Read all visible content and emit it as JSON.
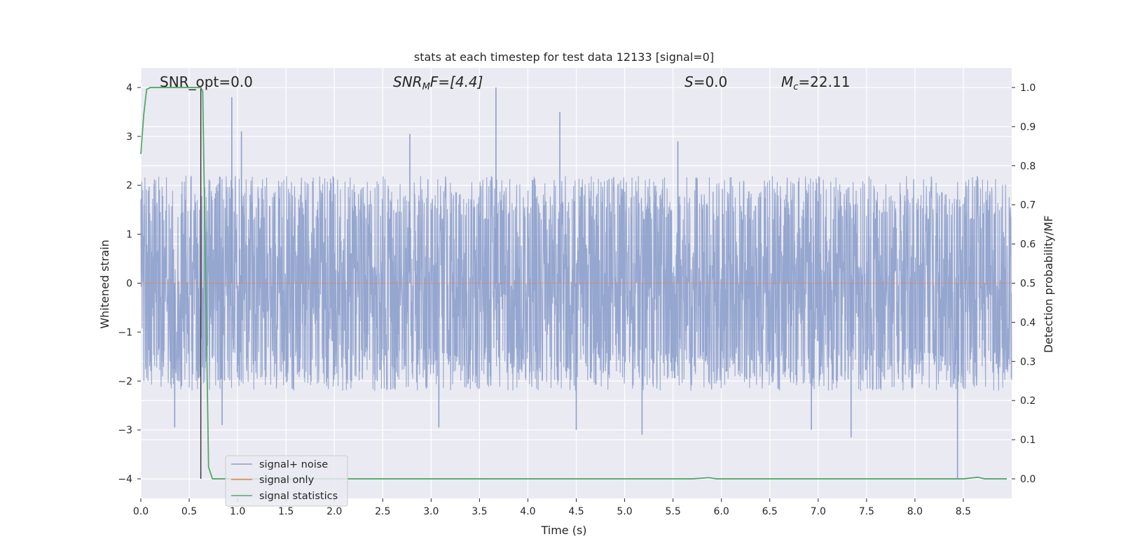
{
  "chart_data": {
    "type": "line",
    "title": "stats at each timestep for test data 12133 [signal=0]",
    "xlabel": "Time (s)",
    "ylabel_left": "Whitened strain",
    "ylabel_right": "Detection probability/MF",
    "xlim": [
      0,
      9.0
    ],
    "ylim_left": [
      -4.4,
      4.4
    ],
    "ylim_right": [
      -0.05,
      1.05
    ],
    "x_ticks": [
      0.0,
      0.5,
      1.0,
      1.5,
      2.0,
      2.5,
      3.0,
      3.5,
      4.0,
      4.5,
      5.0,
      5.5,
      6.0,
      6.5,
      7.0,
      7.5,
      8.0,
      8.5
    ],
    "x_tick_labels": [
      "0.0",
      "0.5",
      "1.0",
      "1.5",
      "2.0",
      "2.5",
      "3.0",
      "3.5",
      "4.0",
      "4.5",
      "5.0",
      "5.5",
      "6.0",
      "6.5",
      "7.0",
      "7.5",
      "8.0",
      "8.5"
    ],
    "y_left_ticks": [
      -4,
      -3,
      -2,
      -1,
      0,
      1,
      2,
      3,
      4
    ],
    "y_left_tick_labels": [
      "−4",
      "−3",
      "−2",
      "−1",
      "0",
      "1",
      "2",
      "3",
      "4"
    ],
    "y_right_ticks": [
      0.0,
      0.1,
      0.2,
      0.3,
      0.4,
      0.5,
      0.6,
      0.7,
      0.8,
      0.9,
      1.0
    ],
    "y_right_tick_labels": [
      "0.0",
      "0.1",
      "0.2",
      "0.3",
      "0.4",
      "0.5",
      "0.6",
      "0.7",
      "0.8",
      "0.9",
      "1.0"
    ],
    "grid": true,
    "background": "#eaeaf2",
    "annotations": {
      "snr_opt": "SNR_opt=0.0",
      "snr_mf_prefix": "SNR",
      "snr_mf_sub": "M",
      "snr_mf_suffix": "F=[4.4]",
      "s_prefix": "S",
      "s_suffix": "=0.0",
      "mc_prefix": "M",
      "mc_sub": "c",
      "mc_suffix": "=22.11"
    },
    "legend": {
      "placement": "lower-left",
      "entries": [
        {
          "label": "signal+ noise",
          "color": "#8c9fcb"
        },
        {
          "label": "signal only",
          "color": "#dd8452"
        },
        {
          "label": "signal statistics",
          "color": "#55a868"
        }
      ]
    },
    "series": [
      {
        "name": "signal+ noise",
        "axis": "left",
        "style": "dense noise band",
        "color": "#8c9fcb",
        "envelope_typical": [
          -1.8,
          2.0
        ],
        "spikes": [
          {
            "x": 0.94,
            "y": 3.8
          },
          {
            "x": 1.04,
            "y": 3.1
          },
          {
            "x": 2.78,
            "y": 3.05
          },
          {
            "x": 3.67,
            "y": 4.0
          },
          {
            "x": 4.33,
            "y": 3.5
          },
          {
            "x": 5.55,
            "y": 2.9
          },
          {
            "x": 0.35,
            "y": -2.95
          },
          {
            "x": 0.84,
            "y": -2.9
          },
          {
            "x": 3.08,
            "y": -2.95
          },
          {
            "x": 4.5,
            "y": -3.0
          },
          {
            "x": 5.18,
            "y": -3.1
          },
          {
            "x": 7.34,
            "y": -3.15
          },
          {
            "x": 8.44,
            "y": -4.0
          },
          {
            "x": 6.93,
            "y": -3.0
          }
        ]
      },
      {
        "name": "signal only",
        "axis": "left",
        "color": "#dd8452",
        "x": [
          0.0,
          9.0
        ],
        "y": [
          0.0,
          0.0
        ]
      },
      {
        "name": "signal statistics",
        "axis": "right",
        "color": "#55a868",
        "x": [
          0.0,
          0.03,
          0.06,
          0.1,
          0.2,
          0.3,
          0.4,
          0.5,
          0.6,
          0.62,
          0.64,
          0.7,
          0.74,
          1.0,
          2.0,
          3.0,
          4.0,
          5.0,
          5.7,
          5.87,
          5.95,
          6.5,
          7.0,
          8.0,
          8.5,
          8.65,
          8.72,
          8.95
        ],
        "y": [
          0.83,
          0.93,
          0.995,
          1.0,
          1.0,
          1.0,
          1.0,
          1.0,
          1.0,
          1.0,
          0.99,
          0.03,
          0.0,
          0.0,
          0.0,
          0.0,
          0.0,
          0.0,
          0.0,
          0.003,
          0.0,
          0.0,
          0.0,
          0.0,
          0.0,
          0.004,
          0.0,
          0.0
        ]
      }
    ],
    "marker_line": {
      "x": 0.62,
      "y_from": -4.0,
      "y_to": 4.0,
      "color": "#333333"
    }
  }
}
